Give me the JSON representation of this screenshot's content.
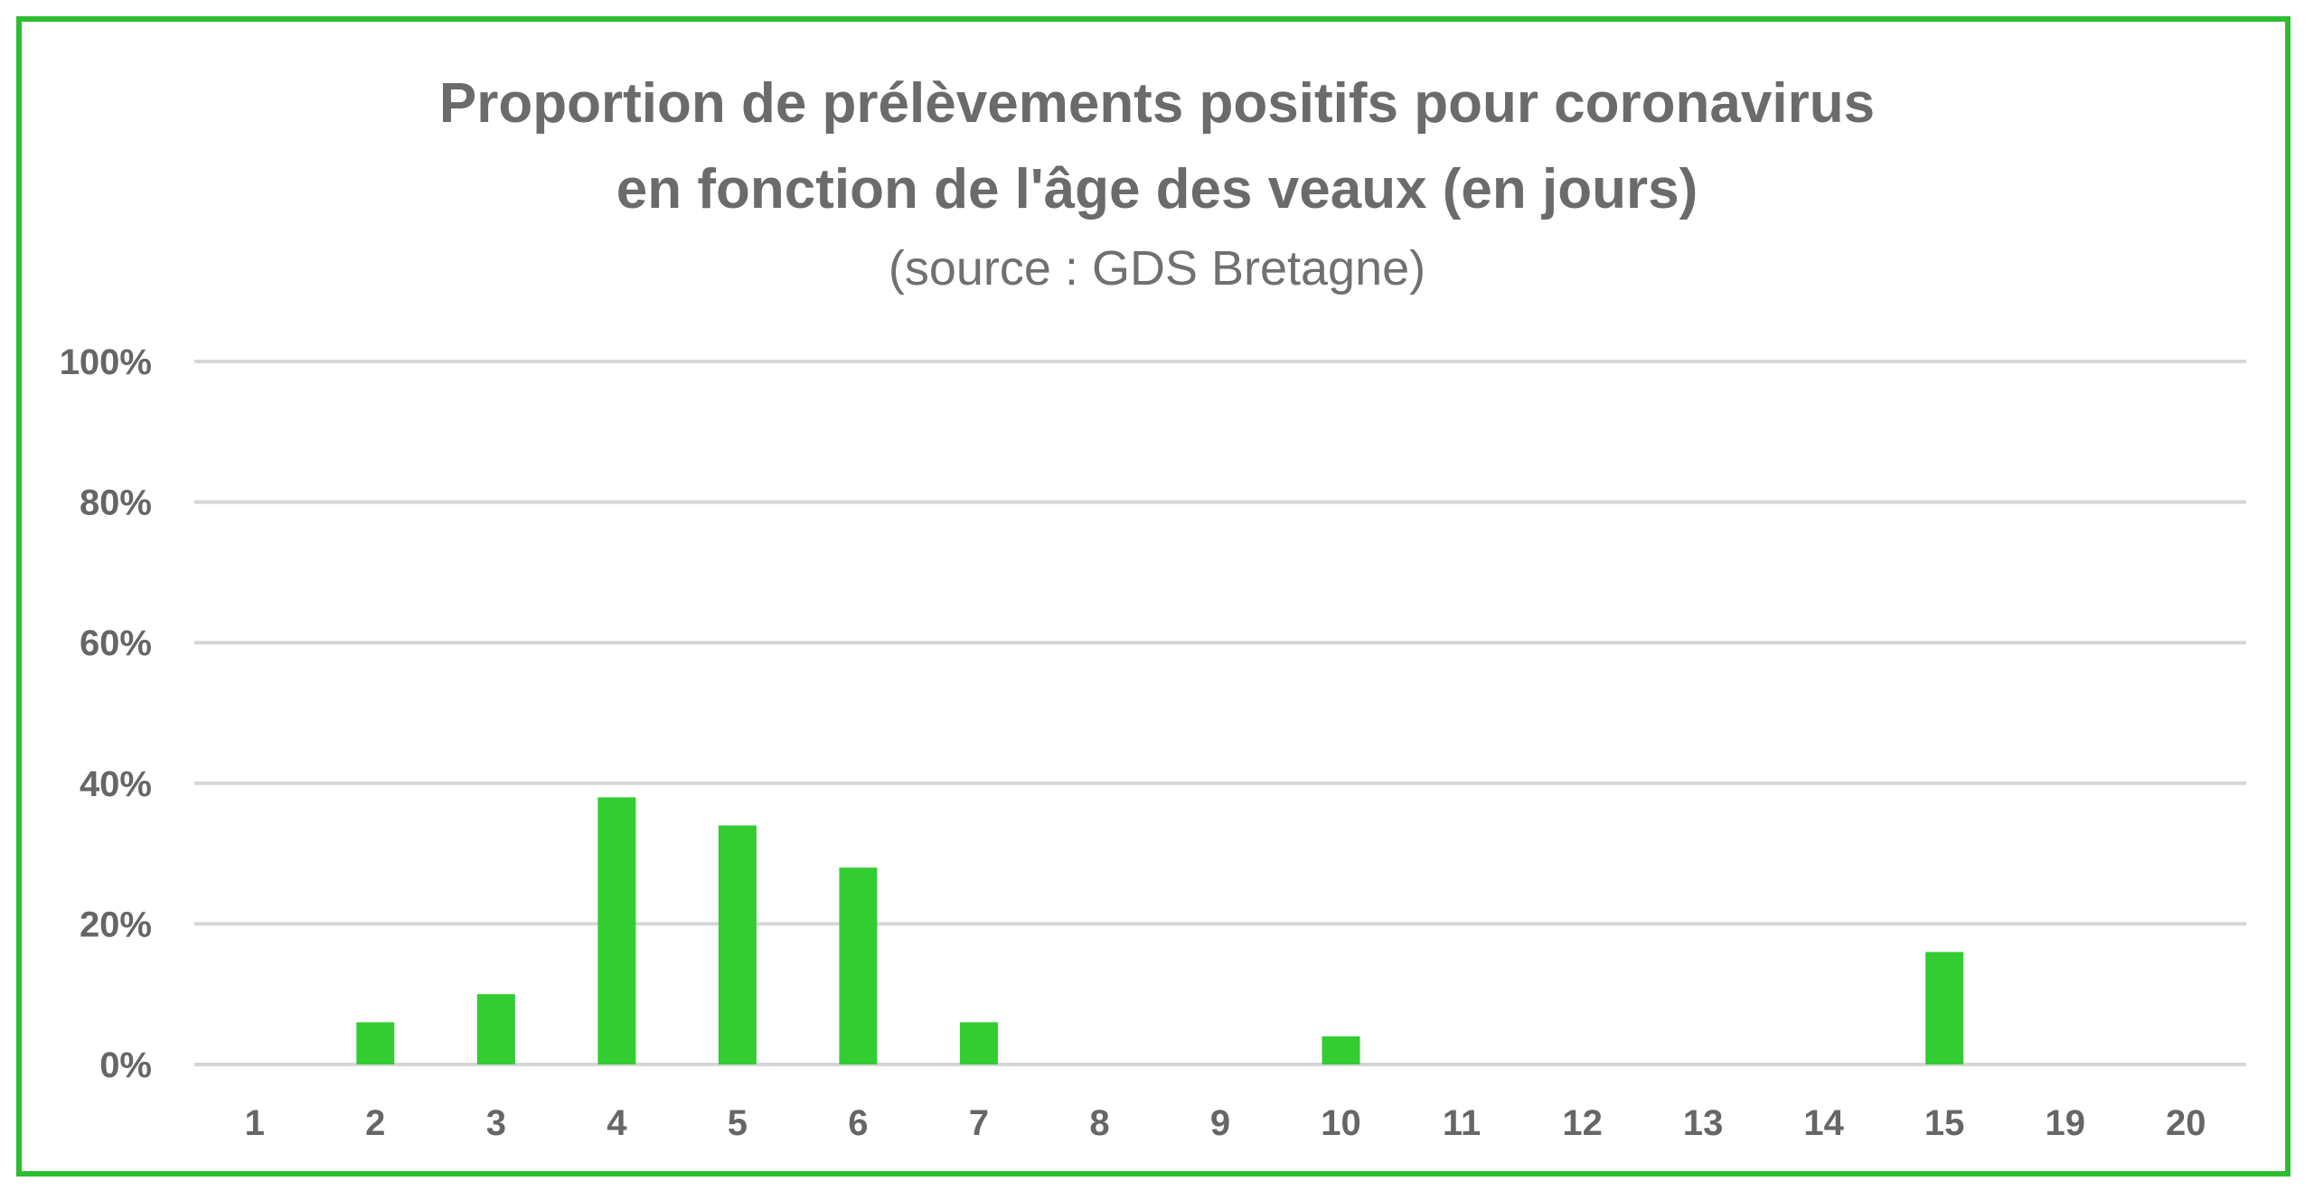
{
  "chart_data": {
    "type": "bar",
    "title_lines": [
      "Proportion de prélèvements positifs pour coronavirus",
      "en fonction de l'âge des veaux (en jours)"
    ],
    "subtitle": "(source : GDS Bretagne)",
    "xlabel": "",
    "ylabel": "",
    "categories": [
      "1",
      "2",
      "3",
      "4",
      "5",
      "6",
      "7",
      "8",
      "9",
      "10",
      "11",
      "12",
      "13",
      "14",
      "15",
      "19",
      "20"
    ],
    "values": [
      0,
      6,
      10,
      38,
      34,
      28,
      6,
      0,
      0,
      4,
      0,
      0,
      0,
      0,
      16,
      0,
      0
    ],
    "ylim": [
      0,
      100
    ],
    "yticks": [
      0,
      20,
      40,
      60,
      80,
      100
    ],
    "ytick_labels": [
      "0%",
      "20%",
      "40%",
      "60%",
      "80%",
      "100%"
    ],
    "grid": true,
    "legend": "none",
    "colors": {
      "bar": "#33cc33",
      "frame": "#2ebd2e",
      "grid": "#d6d6d6",
      "text": "#666666"
    }
  }
}
